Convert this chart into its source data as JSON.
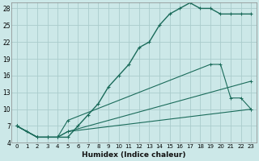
{
  "xlabel": "Humidex (Indice chaleur)",
  "background_color": "#cce8e8",
  "grid_color": "#aacccc",
  "line_color": "#1a6b5a",
  "xlim": [
    -0.5,
    23.5
  ],
  "ylim": [
    4,
    29
  ],
  "xticks": [
    0,
    1,
    2,
    3,
    4,
    5,
    6,
    7,
    8,
    9,
    10,
    11,
    12,
    13,
    14,
    15,
    16,
    17,
    18,
    19,
    20,
    21,
    22,
    23
  ],
  "yticks": [
    4,
    7,
    10,
    13,
    16,
    19,
    22,
    25,
    28
  ],
  "series": [
    {
      "x": [
        0,
        1,
        2,
        3,
        4,
        5,
        6,
        7,
        8,
        9,
        10,
        11,
        12,
        13,
        14,
        15,
        16,
        17,
        18,
        19,
        20,
        21,
        22,
        23
      ],
      "y": [
        7,
        6,
        5,
        5,
        5,
        5,
        7,
        9,
        11,
        14,
        16,
        18,
        21,
        22,
        25,
        27,
        28,
        29,
        28,
        28,
        27,
        27,
        27,
        27
      ]
    },
    {
      "x": [
        0,
        2,
        3,
        4,
        5,
        19,
        20,
        21,
        22,
        23
      ],
      "y": [
        7,
        5,
        5,
        5,
        8,
        18,
        18,
        12,
        12,
        10
      ]
    },
    {
      "x": [
        0,
        2,
        3,
        4,
        5,
        23
      ],
      "y": [
        7,
        5,
        5,
        5,
        6,
        15
      ]
    },
    {
      "x": [
        0,
        2,
        3,
        4,
        5,
        23
      ],
      "y": [
        7,
        5,
        5,
        5,
        6,
        10
      ]
    }
  ]
}
